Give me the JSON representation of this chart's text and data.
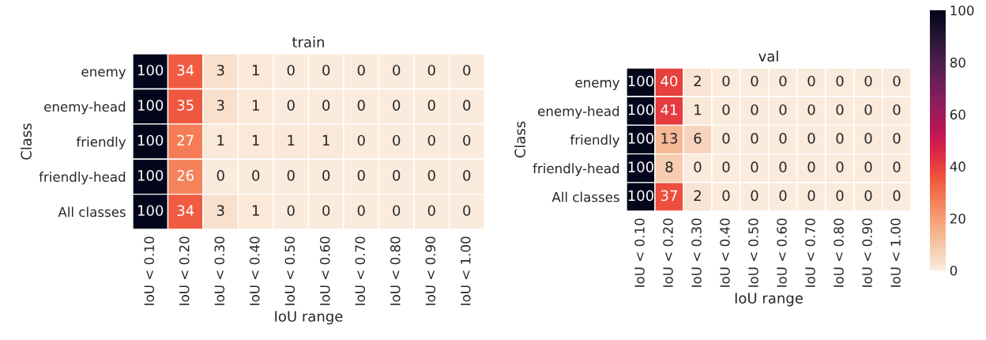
{
  "chart_data": [
    {
      "type": "heatmap",
      "title": "train",
      "xlabel": "IoU range",
      "ylabel": "Class",
      "data_labels": true,
      "categories": [
        "IoU < 0.10",
        "IoU < 0.20",
        "IoU < 0.30",
        "IoU < 0.40",
        "IoU < 0.50",
        "IoU < 0.60",
        "IoU < 0.70",
        "IoU < 0.80",
        "IoU < 0.90",
        "IoU < 1.00"
      ],
      "y_categories": [
        "enemy",
        "enemy-head",
        "friendly",
        "friendly-head",
        "All classes"
      ],
      "cells": [
        [
          100,
          34,
          3,
          1,
          0,
          0,
          0,
          0,
          0,
          0
        ],
        [
          100,
          35,
          3,
          1,
          0,
          0,
          0,
          0,
          0,
          0
        ],
        [
          100,
          27,
          1,
          1,
          1,
          1,
          0,
          0,
          0,
          0
        ],
        [
          100,
          26,
          0,
          0,
          0,
          0,
          0,
          0,
          0,
          0
        ],
        [
          100,
          34,
          3,
          1,
          0,
          0,
          0,
          0,
          0,
          0
        ]
      ]
    },
    {
      "type": "heatmap",
      "title": "val",
      "xlabel": "IoU range",
      "ylabel": "Class",
      "data_labels": true,
      "clim": [
        0,
        100
      ],
      "cticks": [
        0,
        20,
        40,
        60,
        80,
        100
      ],
      "categories": [
        "IoU < 0.10",
        "IoU < 0.20",
        "IoU < 0.30",
        "IoU < 0.40",
        "IoU < 0.50",
        "IoU < 0.60",
        "IoU < 0.70",
        "IoU < 0.80",
        "IoU < 0.90",
        "IoU < 1.00"
      ],
      "y_categories": [
        "enemy",
        "enemy-head",
        "friendly",
        "friendly-head",
        "All classes"
      ],
      "cells": [
        [
          100,
          40,
          2,
          0,
          0,
          0,
          0,
          0,
          0,
          0
        ],
        [
          100,
          41,
          1,
          0,
          0,
          0,
          0,
          0,
          0,
          0
        ],
        [
          100,
          13,
          6,
          0,
          0,
          0,
          0,
          0,
          0,
          0
        ],
        [
          100,
          8,
          0,
          0,
          0,
          0,
          0,
          0,
          0,
          0
        ],
        [
          100,
          37,
          2,
          0,
          0,
          0,
          0,
          0,
          0,
          0
        ]
      ]
    }
  ]
}
